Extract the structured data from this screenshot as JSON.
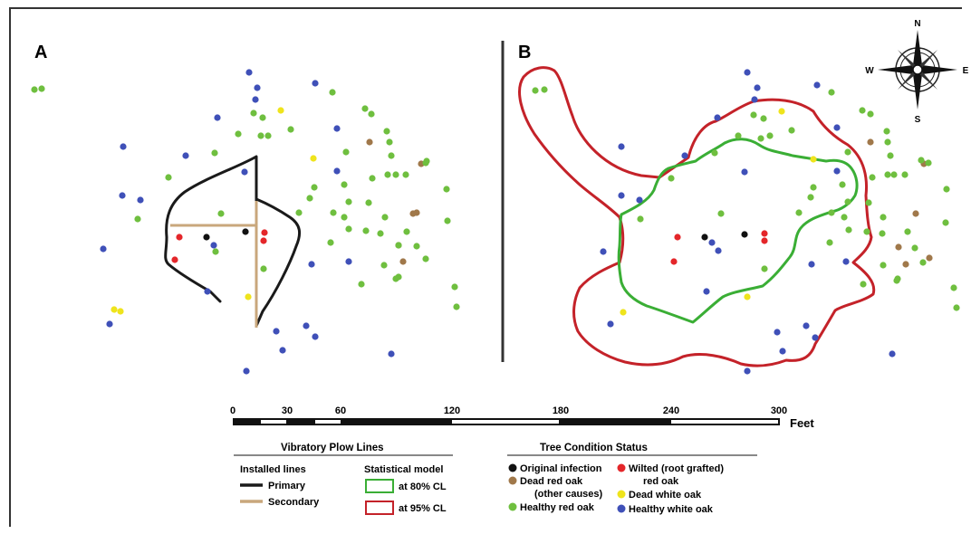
{
  "panels": {
    "a_label": "A",
    "b_label": "B"
  },
  "compass": {
    "n": "N",
    "s": "S",
    "e": "E",
    "w": "W"
  },
  "scale": {
    "ticks": [
      "0",
      "30",
      "60",
      "120",
      "180",
      "240",
      "300"
    ],
    "unit": "Feet"
  },
  "legend": {
    "plow": {
      "title": "Vibratory Plow Lines",
      "installed_header": "Installed lines",
      "model_header": "Statistical model",
      "primary": "Primary",
      "secondary": "Secondary",
      "cl80": "at 80% CL",
      "cl95": "at 95% CL"
    },
    "tree": {
      "title": "Tree Condition Status",
      "original": "Original infection",
      "dead_red_1": "Dead red oak",
      "dead_red_2": "(other causes)",
      "healthy_red": "Healthy red oak",
      "wilted_1": "Wilted (root grafted)",
      "wilted_2": "red oak",
      "dead_white": "Dead white oak",
      "healthy_white": "Healthy white oak"
    }
  },
  "colors": {
    "original": "#111111",
    "dead_red": "#a0784a",
    "wilted": "#e4262a",
    "healthy_red": "#6fbf3f",
    "dead_white": "#efe41c",
    "healthy_white": "#3f50b8",
    "primary_line": "#1a1a1a",
    "secondary_line": "#c9a77c",
    "cl80": "#3aae35",
    "cl95": "#c42229"
  }
}
